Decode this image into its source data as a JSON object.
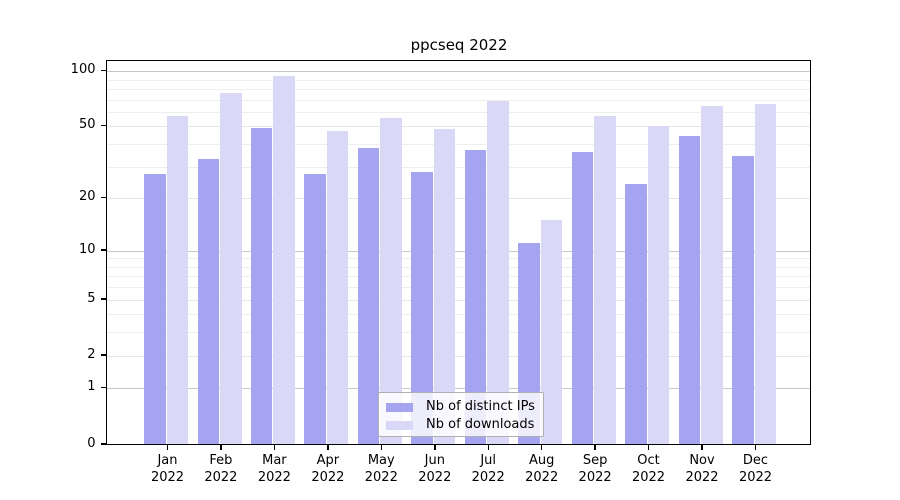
{
  "title": "ppcseq 2022",
  "colors": {
    "ips_bar": "#a4a4f1",
    "downloads_bar": "#d9d9f7",
    "grid_power10": "#c8c8c8",
    "grid_major": "#e6e6e6",
    "grid_minor": "#eeeeee",
    "axis": "#000000",
    "legend_border": "#b0b0b0"
  },
  "chart_data": {
    "type": "bar",
    "title": "ppcseq 2022",
    "xlabel": "",
    "ylabel": "",
    "year": "2022",
    "categories": [
      "Jan",
      "Feb",
      "Mar",
      "Apr",
      "May",
      "Jun",
      "Jul",
      "Aug",
      "Sep",
      "Oct",
      "Nov",
      "Dec"
    ],
    "series": [
      {
        "name": "Nb of distinct IPs",
        "color_key": "ips_bar",
        "values": [
          27,
          33,
          49,
          27,
          38,
          28,
          37,
          11,
          36,
          24,
          44,
          34
        ]
      },
      {
        "name": "Nb of downloads",
        "color_key": "downloads_bar",
        "values": [
          57,
          76,
          93,
          47,
          55,
          48,
          68,
          15,
          57,
          50,
          64,
          66
        ]
      }
    ],
    "y_scale": "log10(1+x)",
    "y_ticks": [
      0,
      1,
      2,
      5,
      10,
      20,
      50,
      100
    ],
    "y_minor_gridlines": [
      3,
      4,
      6,
      7,
      8,
      9,
      30,
      40,
      60,
      70,
      80,
      90
    ],
    "y_power10_gridlines": [
      1,
      10,
      100
    ],
    "ylim": [
      0,
      113
    ],
    "grid": "on",
    "legend_position": "lower center"
  }
}
